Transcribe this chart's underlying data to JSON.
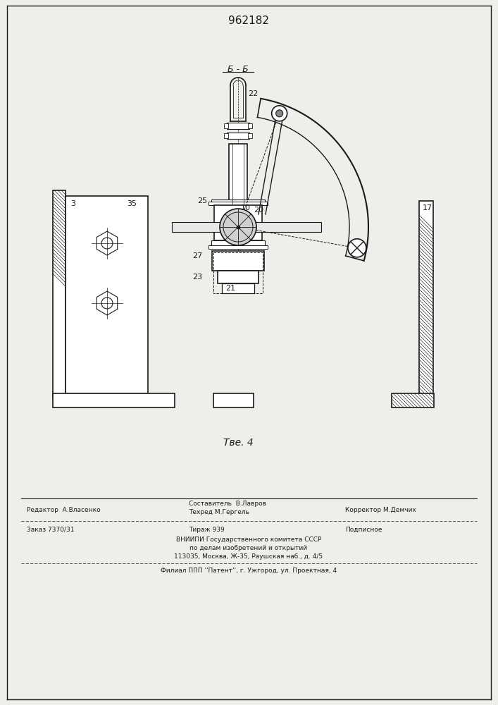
{
  "title": "962182",
  "fig_label": "Τве. 4",
  "section_label": "Б - Б",
  "bg_color": "#f0eeea",
  "line_color": "#1a1a1a",
  "editor_line": "Редактор  А.Власенко",
  "author_line": "Составитель  В.Лавров",
  "techred_line": "Техред М.Гергель",
  "corrector_line": "Корректор М.Демчих",
  "order_line": "Заказ 7370/31",
  "tirazh_line": "Тираж 939",
  "podpisnoe": "Подписное",
  "vniipи_1": "ВНИИПИ Государственного комитета СССР",
  "vniipи_2": "по делам изобретений и открытий",
  "vniipи_3": "113035, Москва, Ж-35, Раушская наб., д. 4/5",
  "filial": "Филиал ППП ''Патент'', г. Ужгород, ул. Проектная, 4"
}
